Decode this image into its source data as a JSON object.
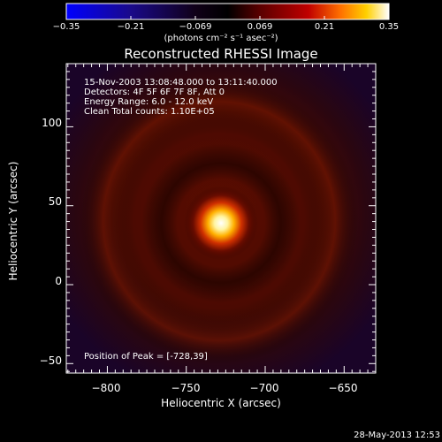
{
  "colorbar": {
    "ticks": [
      "−0.35",
      "−0.21",
      "−0.069",
      "0.069",
      "0.21",
      "0.35"
    ],
    "units": "(photons cm⁻² s⁻¹ asec⁻²)",
    "min": -0.35,
    "max": 0.35
  },
  "image": {
    "title": "Reconstructed RHESSI Image",
    "time_range": "15-Nov-2003 13:08:48.000 to 13:11:40.000",
    "detectors": "Detectors: 4F 5F 6F 7F 8F, Att 0",
    "energy": "Energy Range: 6.0 - 12.0 keV",
    "clean": "Clean    Total counts: 1.10E+05",
    "peak": "Position of Peak = [-728,39]",
    "peak_x": -728,
    "peak_y": 39
  },
  "axes": {
    "xlabel": "Heliocentric X (arcsec)",
    "ylabel": "Heliocentric Y (arcsec)",
    "xticks": [
      "−800",
      "−750",
      "−700",
      "−650"
    ],
    "yticks": [
      "100",
      "50",
      "0",
      "−50"
    ],
    "xlim": [
      -826,
      -630
    ],
    "ylim": [
      -56,
      140
    ]
  },
  "footer": {
    "date": "28-May-2013 12:53"
  }
}
